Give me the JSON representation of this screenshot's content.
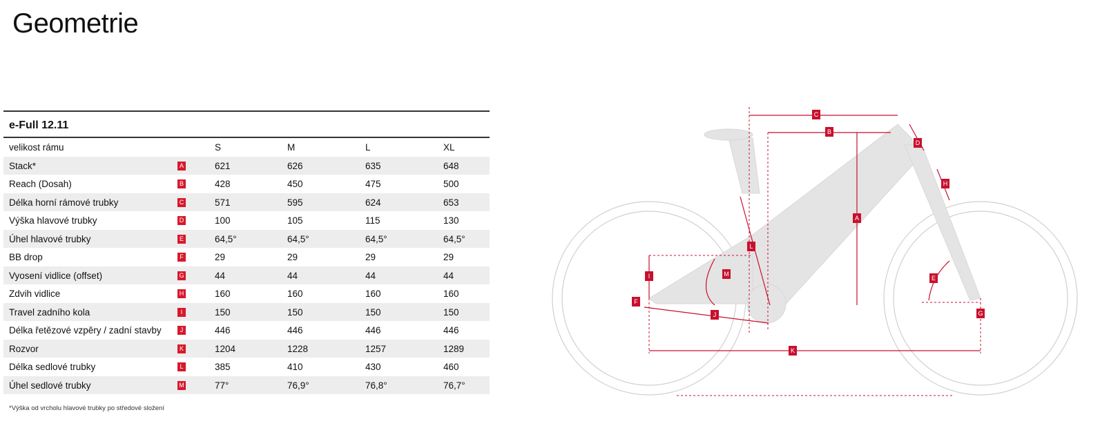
{
  "header": {
    "title": "Geometrie"
  },
  "table": {
    "name": "e-Full 12.11",
    "columns": [
      "velikost rámu",
      "S",
      "M",
      "L",
      "XL"
    ],
    "rows": [
      [
        "Stack*",
        "A",
        "621",
        "626",
        "635",
        "648"
      ],
      [
        "Reach (Dosah)",
        "B",
        "428",
        "450",
        "475",
        "500"
      ],
      [
        "Délka horní rámové trubky",
        "C",
        "571",
        "595",
        "624",
        "653"
      ],
      [
        "Výška hlavové trubky",
        "D",
        "100",
        "105",
        "115",
        "130"
      ],
      [
        "Úhel hlavové trubky",
        "E",
        "64,5°",
        "64,5°",
        "64,5°",
        "64,5°"
      ],
      [
        "BB drop",
        "F",
        "29",
        "29",
        "29",
        "29"
      ],
      [
        "Vyosení vidlice (offset)",
        "G",
        "44",
        "44",
        "44",
        "44"
      ],
      [
        "Zdvih vidlice",
        "H",
        "160",
        "160",
        "160",
        "160"
      ],
      [
        "Travel zadního kola",
        "I",
        "150",
        "150",
        "150",
        "150"
      ],
      [
        "Délka řetězové vzpěry / zadní stavby",
        "J",
        "446",
        "446",
        "446",
        "446"
      ],
      [
        "Rozvor",
        "K",
        "1204",
        "1228",
        "1257",
        "1289"
      ],
      [
        "Délka sedlové trubky",
        "L",
        "385",
        "410",
        "430",
        "460"
      ],
      [
        "Úhel sedlové trubky",
        "M",
        "77°",
        "76,9°",
        "76,8°",
        "76,7°"
      ]
    ]
  },
  "footnote": "*Výška od vrcholu hlavové trubky po středové složení"
}
